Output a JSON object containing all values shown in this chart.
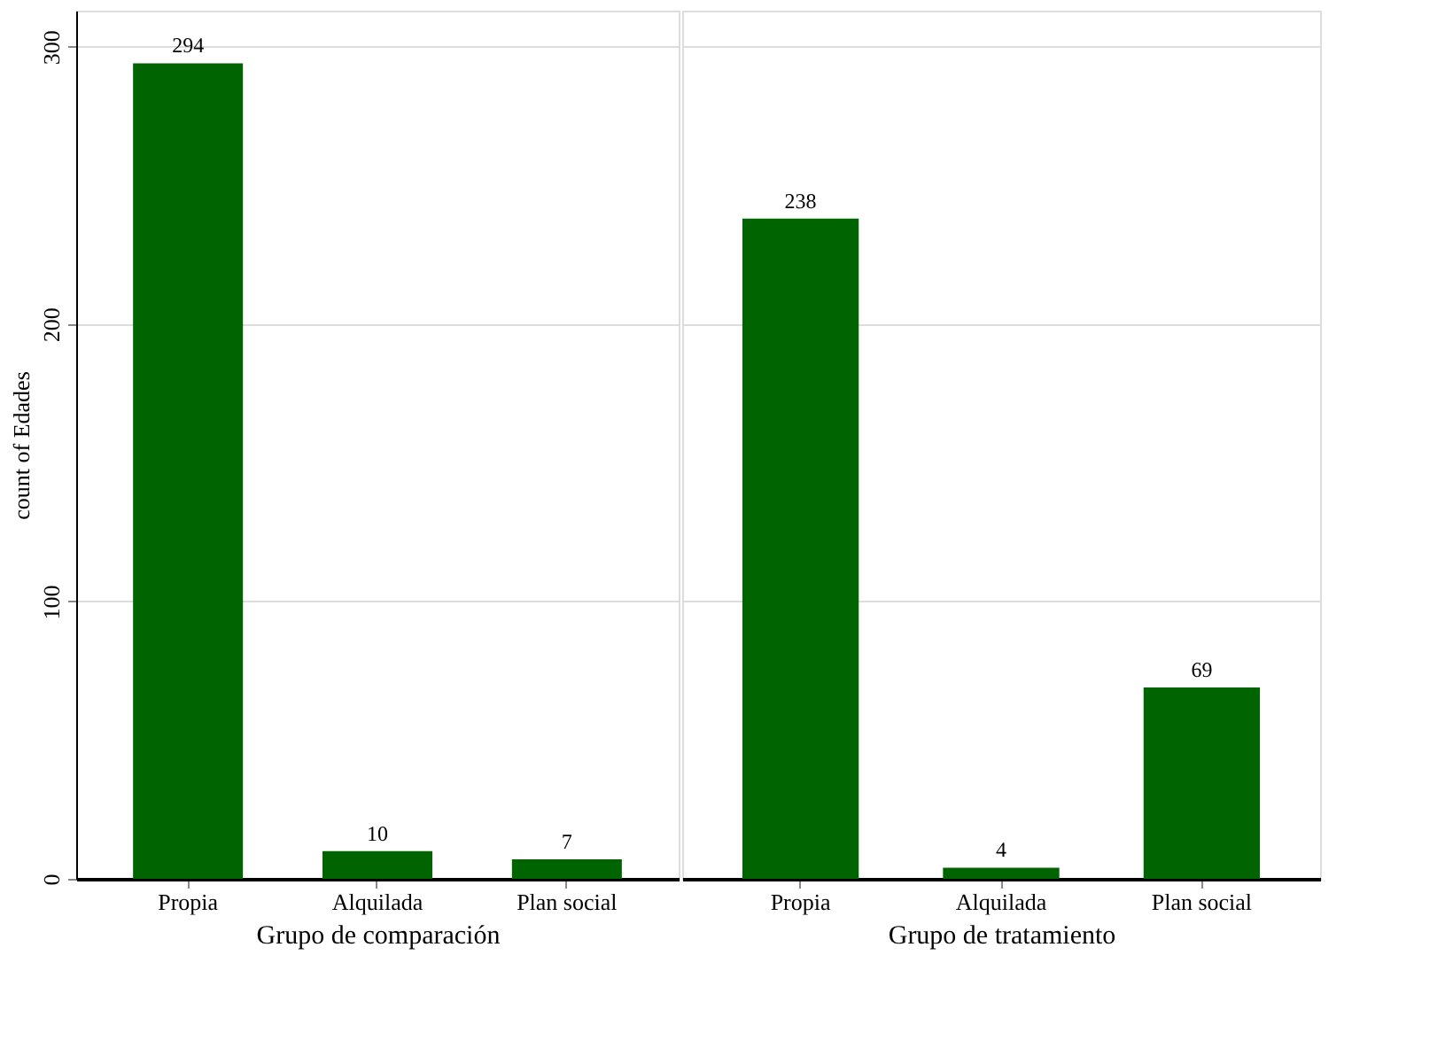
{
  "chart_data": [
    {
      "type": "bar",
      "categories": [
        "Propia",
        "Alquilada",
        "Plan social"
      ],
      "values": [
        294,
        10,
        7
      ],
      "color": "#006400",
      "xlabel": "Grupo de comparación",
      "ylabel": "count of Edades",
      "ylim": [
        0,
        313
      ],
      "yticks": [
        0,
        100,
        200,
        300
      ],
      "grid": "y",
      "data_labels": true
    },
    {
      "type": "bar",
      "categories": [
        "Propia",
        "Alquilada",
        "Plan social"
      ],
      "values": [
        238,
        4,
        69
      ],
      "color": "#006400",
      "xlabel": "Grupo de tratamiento",
      "ylim": [
        0,
        313
      ],
      "yticks": [
        0,
        100,
        200,
        300
      ],
      "grid": "y",
      "data_labels": true,
      "tick_labels": "x"
    }
  ]
}
